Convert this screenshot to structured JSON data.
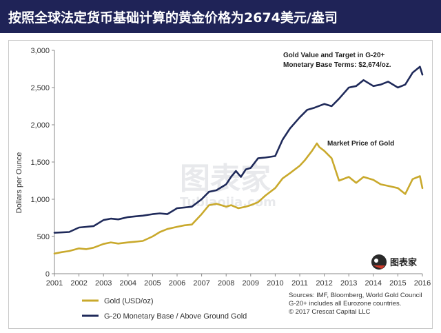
{
  "header": {
    "title": "按照全球法定货币基础计算的黄金价格为2674美元/盎司"
  },
  "watermark": {
    "main": "图表家",
    "sub": "Tubiaojia.com",
    "logo_text": "图表家"
  },
  "colors": {
    "title_bg": "#1f2357",
    "gold_series": "#c9a92c",
    "g20_series": "#1f2a5a"
  },
  "chart_data": {
    "type": "line",
    "xlabel": "",
    "ylabel": "Dollars per Ounce",
    "xlim": [
      2001,
      2016
    ],
    "ylim": [
      0,
      3000
    ],
    "x_ticks": [
      "2001",
      "2002",
      "2003",
      "2004",
      "2005",
      "2006",
      "2007",
      "2008",
      "2009",
      "2010",
      "2011",
      "2012",
      "2013",
      "2014",
      "2015",
      "2016"
    ],
    "y_ticks": [
      "0",
      "500",
      "1,000",
      "1,500",
      "2,000",
      "2,500",
      "3,000"
    ],
    "grid": false,
    "legend_position": "bottom-left",
    "series": [
      {
        "name": "Gold (USD/oz)",
        "x": [
          2001.0,
          2001.3,
          2001.6,
          2002.0,
          2002.3,
          2002.6,
          2003.0,
          2003.3,
          2003.6,
          2004.0,
          2004.3,
          2004.6,
          2005.0,
          2005.3,
          2005.6,
          2006.0,
          2006.3,
          2006.6,
          2007.0,
          2007.3,
          2007.6,
          2008.0,
          2008.2,
          2008.5,
          2008.8,
          2009.0,
          2009.3,
          2009.6,
          2010.0,
          2010.3,
          2010.6,
          2011.0,
          2011.2,
          2011.5,
          2011.7,
          2011.8,
          2012.0,
          2012.3,
          2012.6,
          2013.0,
          2013.3,
          2013.6,
          2014.0,
          2014.3,
          2014.6,
          2015.0,
          2015.3,
          2015.6,
          2015.9,
          2016.0
        ],
        "y": [
          270,
          290,
          305,
          340,
          330,
          350,
          400,
          420,
          405,
          420,
          430,
          440,
          500,
          560,
          600,
          630,
          650,
          660,
          800,
          920,
          940,
          900,
          920,
          880,
          900,
          920,
          960,
          1050,
          1150,
          1280,
          1350,
          1450,
          1520,
          1650,
          1750,
          1700,
          1650,
          1550,
          1250,
          1300,
          1220,
          1300,
          1260,
          1200,
          1180,
          1150,
          1070,
          1270,
          1310,
          1150
        ]
      },
      {
        "name": "G-20 Monetary Base / Above Ground Gold",
        "x": [
          2001.0,
          2001.3,
          2001.6,
          2002.0,
          2002.3,
          2002.6,
          2003.0,
          2003.3,
          2003.6,
          2004.0,
          2004.3,
          2004.6,
          2005.0,
          2005.3,
          2005.6,
          2006.0,
          2006.3,
          2006.6,
          2007.0,
          2007.3,
          2007.6,
          2008.0,
          2008.2,
          2008.4,
          2008.6,
          2008.8,
          2009.0,
          2009.3,
          2009.6,
          2010.0,
          2010.3,
          2010.6,
          2011.0,
          2011.3,
          2011.6,
          2012.0,
          2012.3,
          2012.6,
          2013.0,
          2013.3,
          2013.6,
          2014.0,
          2014.3,
          2014.6,
          2015.0,
          2015.3,
          2015.6,
          2015.9,
          2016.0
        ],
        "y": [
          550,
          555,
          560,
          620,
          630,
          640,
          720,
          740,
          730,
          760,
          770,
          780,
          800,
          810,
          800,
          880,
          890,
          900,
          1000,
          1100,
          1120,
          1200,
          1300,
          1380,
          1300,
          1400,
          1420,
          1550,
          1560,
          1580,
          1800,
          1950,
          2100,
          2200,
          2230,
          2280,
          2250,
          2350,
          2500,
          2520,
          2600,
          2520,
          2540,
          2580,
          2500,
          2540,
          2700,
          2780,
          2674
        ]
      }
    ],
    "annotations": [
      "Gold Value and Target in G-20+",
      "Monetary Base Terms: $2,674/oz.",
      "Market Price of Gold"
    ],
    "source_lines": [
      "Sources: IMF, Bloomberg, World Gold Council",
      "G-20+ includes all Eurozone countries.",
      "© 2017 Crescat Capital LLC"
    ]
  }
}
